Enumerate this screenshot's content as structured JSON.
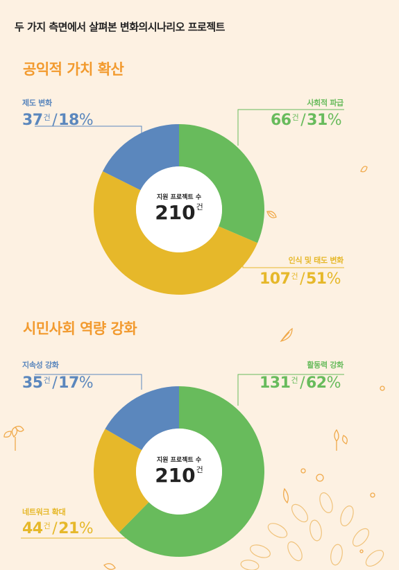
{
  "page_title": "두 가지 측면에서 살펴본 변화의시나리오 프로젝트",
  "colors": {
    "blue": "#5b87bd",
    "green": "#68bb5c",
    "yellow": "#e6b82a",
    "accent": "#f29a2e",
    "background": "#fdf1e2"
  },
  "count_unit": "건",
  "chart_data": [
    {
      "type": "pie",
      "title": "공익적 가치 확산",
      "center_label": "지원 프로젝트 수",
      "center_value": "210",
      "categories": [
        "사회적 파급",
        "인식 및 태도 변화",
        "제도 변화"
      ],
      "values": [
        66,
        107,
        37
      ],
      "percents": [
        31,
        51,
        18
      ],
      "colors": [
        "#68bb5c",
        "#e6b82a",
        "#5b87bd"
      ]
    },
    {
      "type": "pie",
      "title": "시민사회 역량 강화",
      "center_label": "지원 프로젝트 수",
      "center_value": "210",
      "categories": [
        "활동력 강화",
        "네트워크 확대",
        "지속성 강화"
      ],
      "values": [
        131,
        44,
        35
      ],
      "percents": [
        62,
        21,
        17
      ],
      "colors": [
        "#68bb5c",
        "#e6b82a",
        "#5b87bd"
      ]
    }
  ]
}
